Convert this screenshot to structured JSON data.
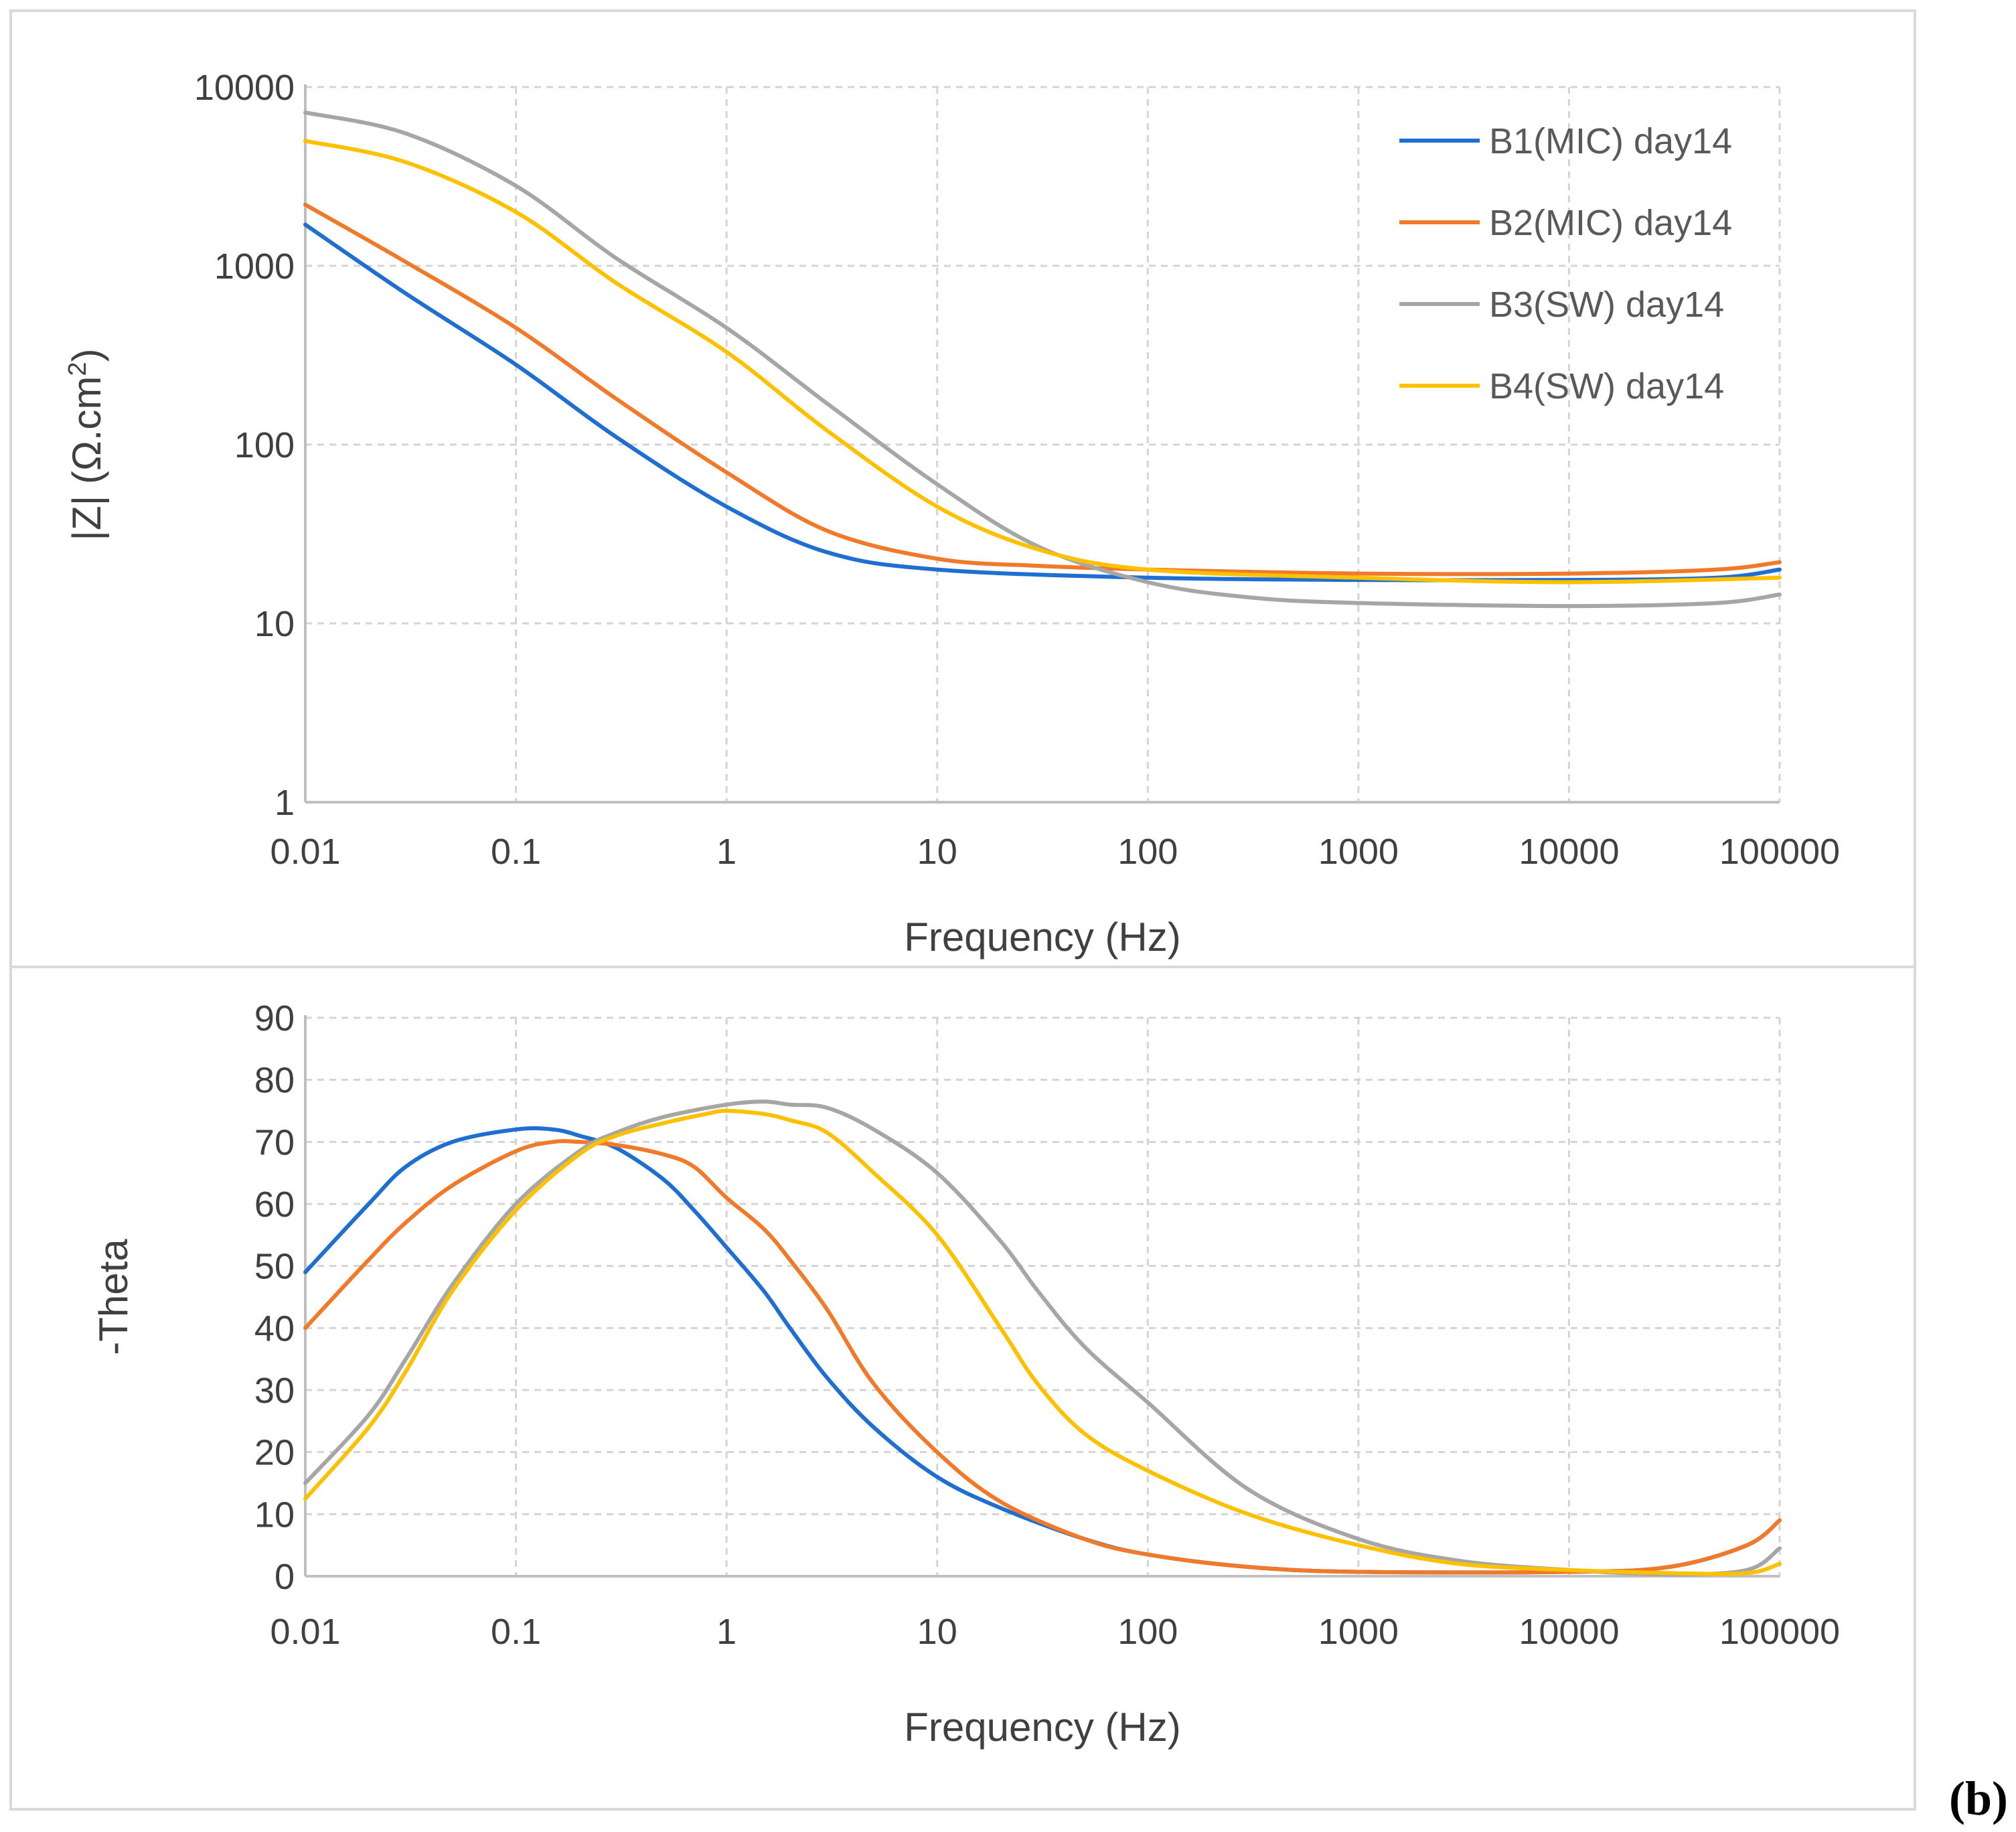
{
  "panel_label": "(b)",
  "colors": {
    "B1": "#1f6fd1",
    "B2": "#f07a2a",
    "B3": "#a6a6a6",
    "B4": "#ffc000",
    "grid": "#d4d4d4",
    "axis": "#bfbfbf"
  },
  "chart_data": [
    {
      "type": "line",
      "x_scale": "log",
      "y_scale": "log",
      "xlabel": "Frequency (Hz)",
      "ylabel": "|Z| (Ω.cm²)",
      "ylabel_main": "|Z| (Ω.cm",
      "ylabel_sup": "2",
      "ylabel_close": ")",
      "xlim": [
        0.01,
        100000
      ],
      "ylim": [
        1,
        10000
      ],
      "x_ticks": [
        "0.01",
        "0.1",
        "1",
        "10",
        "100",
        "1000",
        "10000",
        "100000"
      ],
      "y_ticks": [
        "1",
        "10",
        "100",
        "1000",
        "10000"
      ],
      "legend_position": "top-right",
      "series": [
        {
          "key": "B1",
          "name": "B1(MIC) day14",
          "x": [
            0.01,
            0.03,
            0.1,
            0.3,
            1,
            3,
            10,
            100,
            1000,
            10000,
            50000,
            100000
          ],
          "y": [
            1700,
            700,
            280,
            110,
            45,
            25,
            20,
            18,
            17.5,
            17.5,
            18,
            20
          ]
        },
        {
          "key": "B2",
          "name": "B2(MIC) day14",
          "x": [
            0.01,
            0.03,
            0.1,
            0.3,
            1,
            3,
            10,
            30,
            100,
            1000,
            10000,
            50000,
            100000
          ],
          "y": [
            2200,
            1050,
            450,
            180,
            70,
            33,
            23,
            21,
            20,
            19,
            19,
            20,
            22
          ]
        },
        {
          "key": "B3",
          "name": "B3(SW) day14",
          "x": [
            0.01,
            0.03,
            0.1,
            0.3,
            1,
            3,
            10,
            30,
            100,
            300,
            1000,
            10000,
            50000,
            100000
          ],
          "y": [
            7200,
            5500,
            2800,
            1100,
            450,
            170,
            60,
            27,
            17,
            14,
            13,
            12.5,
            13,
            14.5
          ]
        },
        {
          "key": "B4",
          "name": "B4(SW) day14",
          "x": [
            0.01,
            0.03,
            0.1,
            0.3,
            1,
            3,
            10,
            30,
            100,
            1000,
            10000,
            100000
          ],
          "y": [
            5000,
            3800,
            2000,
            800,
            330,
            120,
            45,
            26,
            20,
            18,
            17,
            18
          ]
        }
      ]
    },
    {
      "type": "line",
      "x_scale": "log",
      "xlabel": "Frequency (Hz)",
      "ylabel": "-Theta",
      "xlim": [
        0.01,
        100000
      ],
      "ylim": [
        0,
        90
      ],
      "x_ticks": [
        "0.01",
        "0.1",
        "1",
        "10",
        "100",
        "1000",
        "10000",
        "100000"
      ],
      "y_ticks": [
        "0",
        "10",
        "20",
        "30",
        "40",
        "50",
        "60",
        "70",
        "80",
        "90"
      ],
      "series": [
        {
          "key": "B1",
          "name": "B1(MIC) day14",
          "x": [
            0.01,
            0.02,
            0.03,
            0.05,
            0.1,
            0.15,
            0.2,
            0.3,
            0.5,
            0.7,
            1,
            1.5,
            2,
            3,
            5,
            10,
            20,
            50,
            100,
            300,
            1000,
            10000,
            30000,
            70000,
            100000
          ],
          "y": [
            49,
            60,
            66,
            70,
            72,
            72,
            71,
            69,
            64,
            59,
            53,
            46,
            40,
            32,
            24,
            16,
            11,
            6,
            3.5,
            1.5,
            0.7,
            0.7,
            1.5,
            5,
            9
          ]
        },
        {
          "key": "B2",
          "name": "B2(MIC) day14",
          "x": [
            0.01,
            0.02,
            0.03,
            0.05,
            0.1,
            0.15,
            0.2,
            0.3,
            0.5,
            0.7,
            1,
            1.5,
            2,
            3,
            5,
            10,
            20,
            50,
            100,
            300,
            1000,
            10000,
            30000,
            70000,
            100000
          ],
          "y": [
            40,
            51,
            57,
            63,
            68.5,
            70,
            70,
            69.5,
            68,
            66,
            61,
            56,
            51,
            43,
            31,
            20,
            12,
            6,
            3.5,
            1.5,
            0.7,
            0.7,
            1.5,
            5,
            9
          ]
        },
        {
          "key": "B3",
          "name": "B3(SW) day14",
          "x": [
            0.01,
            0.02,
            0.03,
            0.05,
            0.1,
            0.2,
            0.3,
            0.5,
            1,
            1.5,
            2,
            3,
            5,
            10,
            20,
            30,
            50,
            100,
            300,
            1000,
            3000,
            10000,
            30000,
            70000,
            100000
          ],
          "y": [
            15,
            26,
            35,
            47,
            60,
            68.5,
            71.5,
            74,
            76,
            76.5,
            76,
            75.5,
            72,
            65,
            54,
            46,
            37,
            28,
            14,
            6,
            2.5,
            1,
            0.3,
            1,
            4.5
          ]
        },
        {
          "key": "B4",
          "name": "B4(SW) day14",
          "x": [
            0.01,
            0.02,
            0.03,
            0.05,
            0.1,
            0.2,
            0.3,
            0.5,
            0.8,
            1,
            1.5,
            2,
            3,
            5,
            10,
            20,
            30,
            50,
            100,
            300,
            1000,
            3000,
            10000,
            30000,
            70000,
            100000
          ],
          "y": [
            12.5,
            24,
            33,
            46,
            59,
            68,
            71,
            73,
            74.5,
            75,
            74.5,
            73.5,
            71.5,
            65,
            55,
            40,
            31,
            23,
            17,
            10,
            5,
            2,
            1,
            0.5,
            0.5,
            2
          ]
        }
      ]
    }
  ]
}
